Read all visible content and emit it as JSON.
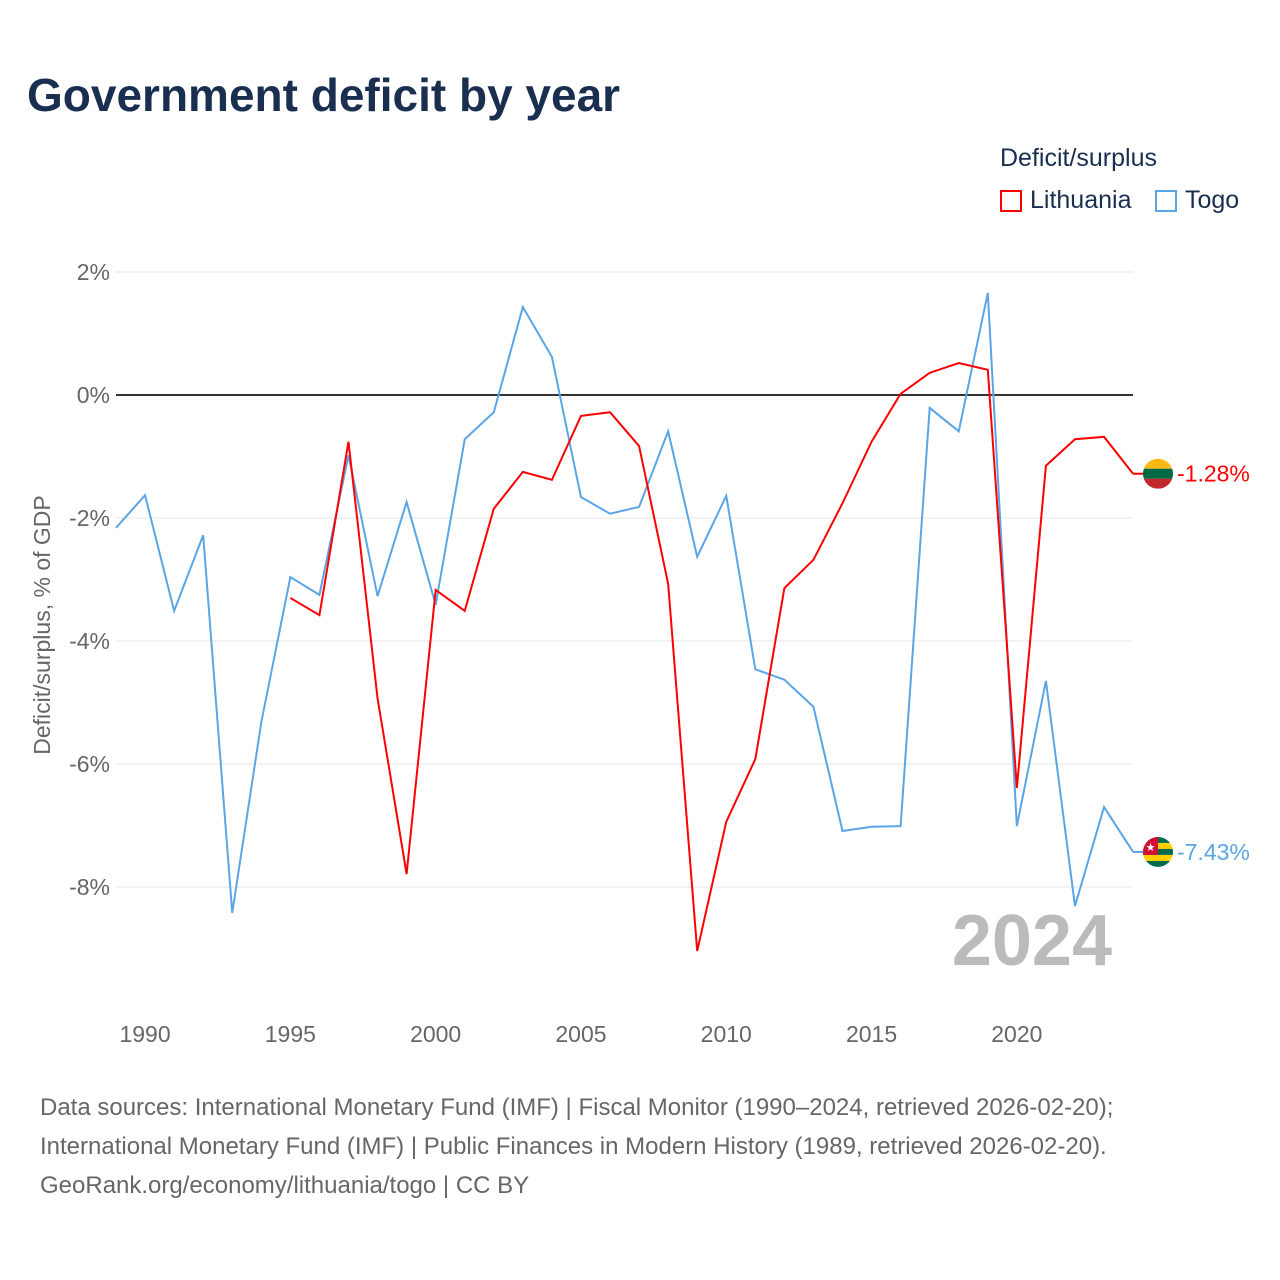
{
  "title": "Government deficit by year",
  "chart_data": {
    "type": "line",
    "title": "Government deficit by year",
    "ylabel": "Deficit/surplus, % of GDP",
    "xlabel": "",
    "legend_title": "Deficit/surplus",
    "legend_placement": "top-right",
    "ylim": [
      -9.5,
      2.2
    ],
    "xlim": [
      1989,
      2024
    ],
    "yticks": [
      2,
      0,
      -2,
      -4,
      -6,
      -8
    ],
    "ytick_labels": [
      "2%",
      "0%",
      "-2%",
      "-4%",
      "-6%",
      "-8%"
    ],
    "xticks": [
      1990,
      1995,
      2000,
      2005,
      2010,
      2015,
      2020
    ],
    "xtick_labels": [
      "1990",
      "1995",
      "2000",
      "2005",
      "2010",
      "2015",
      "2020"
    ],
    "year_label": "2024",
    "series": [
      {
        "name": "Lithuania",
        "color": "#ff0000",
        "end_label": "-1.28%",
        "x": [
          1995,
          1996,
          1997,
          1998,
          1999,
          2000,
          2001,
          2002,
          2003,
          2004,
          2005,
          2006,
          2007,
          2008,
          2009,
          2010,
          2011,
          2012,
          2013,
          2014,
          2015,
          2016,
          2017,
          2018,
          2019,
          2020,
          2021,
          2022,
          2023,
          2024
        ],
        "values": [
          -3.3,
          -3.58,
          -0.76,
          -4.93,
          -7.79,
          -3.17,
          -3.51,
          -1.85,
          -1.25,
          -1.38,
          -0.34,
          -0.28,
          -0.83,
          -3.07,
          -9.04,
          -6.94,
          -5.92,
          -3.14,
          -2.68,
          -1.76,
          -0.76,
          0.02,
          0.36,
          0.52,
          0.41,
          -6.39,
          -1.15,
          -0.72,
          -0.68,
          -1.28
        ]
      },
      {
        "name": "Togo",
        "color": "#5aa5e6",
        "end_label": "-7.43%",
        "x": [
          1989,
          1990,
          1991,
          1992,
          1993,
          1994,
          1995,
          1996,
          1997,
          1998,
          1999,
          2000,
          2001,
          2002,
          2003,
          2004,
          2005,
          2006,
          2007,
          2008,
          2009,
          2010,
          2011,
          2012,
          2013,
          2014,
          2015,
          2016,
          2017,
          2018,
          2019,
          2020,
          2021,
          2022,
          2023,
          2024
        ],
        "values": [
          -2.16,
          -1.63,
          -3.51,
          -2.28,
          -8.42,
          -5.32,
          -2.96,
          -3.25,
          -0.98,
          -3.27,
          -1.74,
          -3.41,
          -0.72,
          -0.28,
          1.43,
          0.62,
          -1.66,
          -1.93,
          -1.82,
          -0.59,
          -2.63,
          -1.64,
          -4.46,
          -4.63,
          -5.07,
          -7.09,
          -7.02,
          -7.01,
          -0.21,
          -0.59,
          1.66,
          -7.01,
          -4.65,
          -8.31,
          -6.7,
          -7.43
        ]
      }
    ]
  },
  "footer": {
    "line1": "Data sources: International Monetary Fund (IMF) | Fiscal Monitor (1990–2024, retrieved 2026-02-20);",
    "line2": "International Monetary Fund (IMF) | Public Finances in Modern History (1989, retrieved 2026-02-20).",
    "line3": "GeoRank.org/economy/lithuania/togo | CC BY"
  }
}
